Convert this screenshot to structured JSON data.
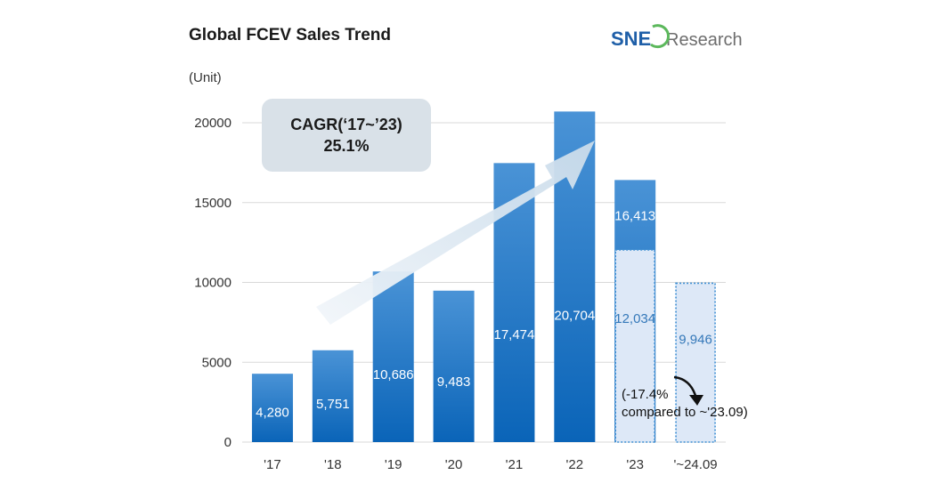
{
  "title": "Global FCEV Sales Trend",
  "unit_label": "(Unit)",
  "logo": {
    "brand": "SNE",
    "suffix": "Research"
  },
  "cagr": {
    "line1": "CAGR(‘17~’23)",
    "line2": "25.1%"
  },
  "note": {
    "line1": "(-17.4%",
    "line2": "compared to ~'23.09)"
  },
  "colors": {
    "bar_top": "#4a93d6",
    "bar_bottom": "#0a64b8",
    "partial_fill": "#dde8f7",
    "partial_border": "#3f8fd3",
    "partial_text": "#3478b9",
    "grid": "#d9d9d9",
    "cagr_box": "#d9e1e8",
    "arrow": "#d6e3ef",
    "logo_blue": "#1f5fa8",
    "logo_green": "#5cb85c",
    "logo_gray": "#6d6d6d"
  },
  "chart_data": {
    "type": "bar",
    "title": "Global FCEV Sales Trend",
    "ylabel": "(Unit)",
    "categories": [
      "'17",
      "'18",
      "'19",
      "'20",
      "'21",
      "'22",
      "'23",
      "'~24.09"
    ],
    "values": [
      4280,
      5751,
      10686,
      9483,
      17474,
      20704,
      16413,
      null
    ],
    "value_labels": [
      "4,280",
      "5,751",
      "10,686",
      "9,483",
      "17,474",
      "20,704",
      "16,413",
      null
    ],
    "partial_values": [
      null,
      null,
      null,
      null,
      null,
      null,
      12034,
      9946
    ],
    "partial_labels": [
      null,
      null,
      null,
      null,
      null,
      null,
      "12,034",
      "9,946"
    ],
    "y_ticks": [
      0,
      5000,
      10000,
      15000,
      20000
    ],
    "ylim": [
      0,
      20000
    ],
    "grid": true,
    "legend": "none"
  }
}
